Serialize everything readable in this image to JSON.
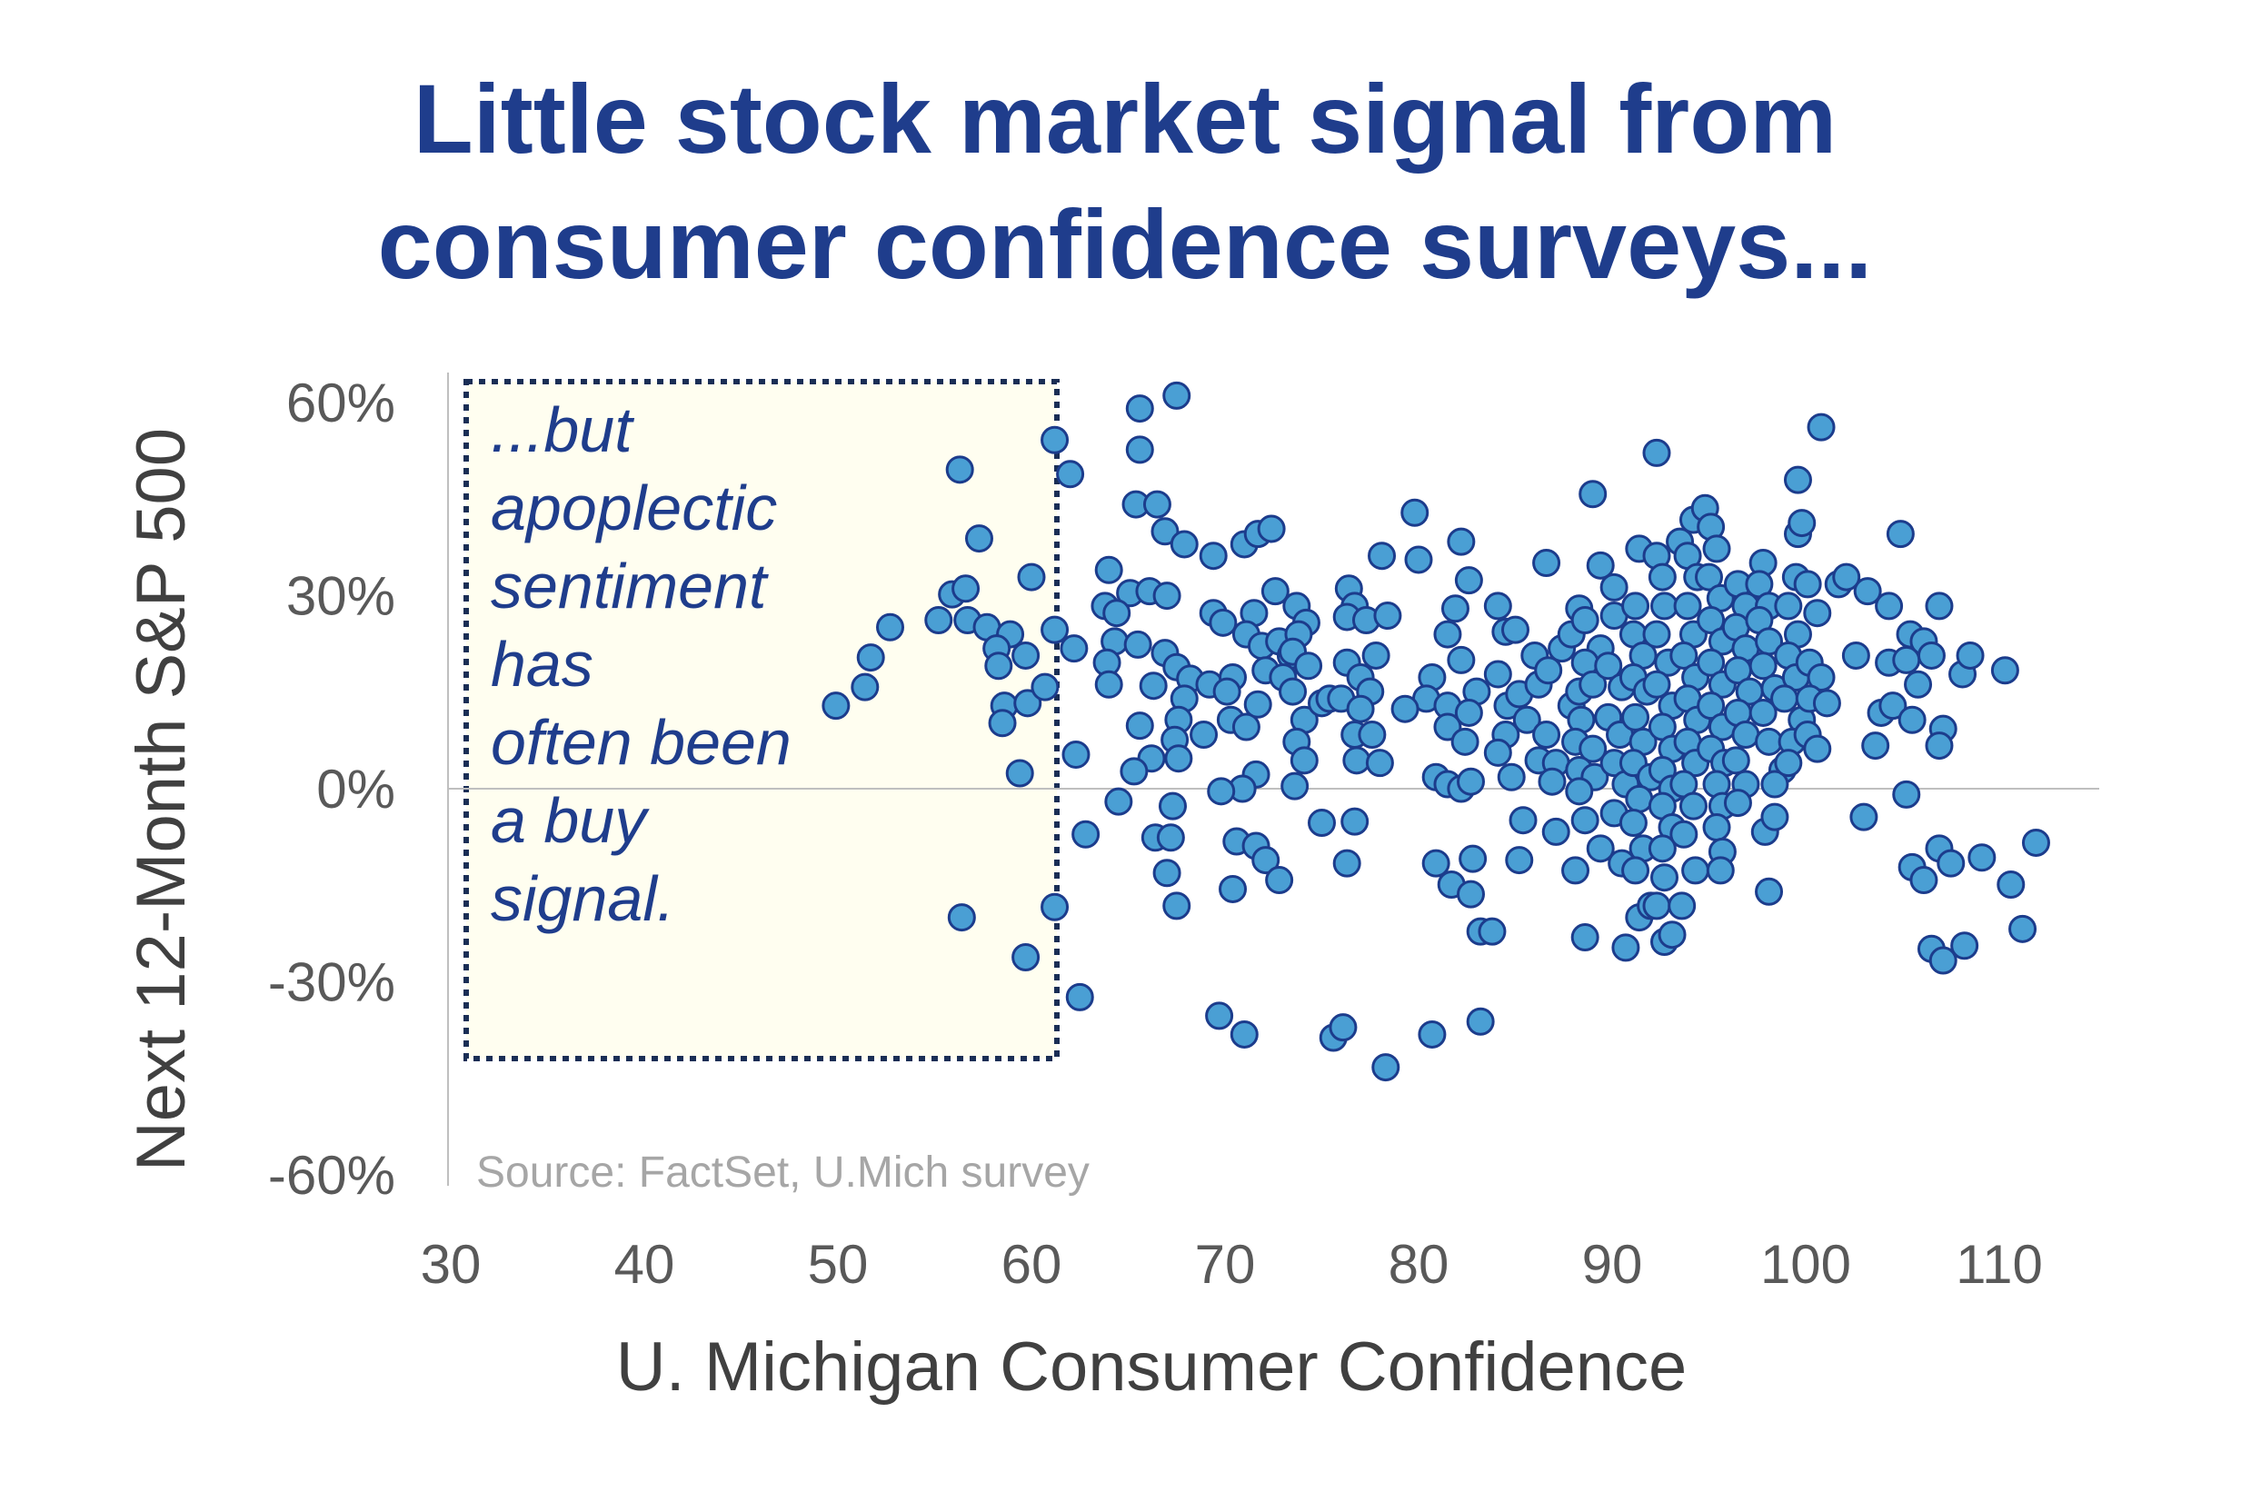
{
  "chart_data": {
    "type": "scatter",
    "title_lines": [
      "Little stock market signal from",
      "consumer confidence surveys..."
    ],
    "xlabel": "U. Michigan Consumer Confidence",
    "ylabel": "Next 12-Month S&P 500",
    "xlim": [
      30,
      115
    ],
    "ylim": [
      -60,
      60
    ],
    "xticks": [
      "30",
      "40",
      "50",
      "60",
      "70",
      "80",
      "90",
      "100",
      "110"
    ],
    "xtick_values": [
      30,
      40,
      50,
      60,
      70,
      80,
      90,
      100,
      110
    ],
    "yticks": [
      "60%",
      "30%",
      "0%",
      "-30%",
      "-60%"
    ],
    "ytick_values": [
      60,
      30,
      0,
      -30,
      -60
    ],
    "grid": false,
    "reference_line_y": 0,
    "highlight_region": {
      "x": [
        31,
        61
      ],
      "y": [
        -40,
        63
      ]
    },
    "annotation_lines": [
      "...but",
      "apoplectic",
      "sentiment",
      "has",
      "often been",
      "a buy",
      "signal."
    ],
    "source": "Source: FactSet, U.Mich survey",
    "colors": {
      "title": "#1f3d8c",
      "point_fill": "#4a9fd4",
      "point_stroke": "#1c3c8c",
      "box_fill": "#fffef0",
      "box_border": "#1a2e55"
    },
    "points": [
      [
        49.9,
        12.9
      ],
      [
        51.4,
        15.8
      ],
      [
        51.7,
        20.4
      ],
      [
        52.7,
        25.1
      ],
      [
        56.3,
        49.6
      ],
      [
        57.3,
        38.9
      ],
      [
        55.9,
        30.2
      ],
      [
        56.6,
        31.1
      ],
      [
        55.2,
        26.2
      ],
      [
        56.7,
        26.2
      ],
      [
        57.7,
        25.1
      ],
      [
        58.9,
        24.0
      ],
      [
        58.2,
        21.8
      ],
      [
        58.3,
        19.1
      ],
      [
        59.7,
        20.7
      ],
      [
        60.0,
        32.9
      ],
      [
        58.6,
        12.9
      ],
      [
        58.5,
        10.2
      ],
      [
        59.8,
        13.3
      ],
      [
        60.7,
        15.8
      ],
      [
        59.4,
        2.4
      ],
      [
        56.4,
        -20.0
      ],
      [
        59.7,
        -26.2
      ],
      [
        61.2,
        54.2
      ],
      [
        62.0,
        48.9
      ],
      [
        61.2,
        24.7
      ],
      [
        62.2,
        21.8
      ],
      [
        61.2,
        -18.4
      ],
      [
        62.3,
        5.3
      ],
      [
        62.5,
        -32.4
      ],
      [
        62.8,
        -7.1
      ],
      [
        65.6,
        59.1
      ],
      [
        67.5,
        61.1
      ],
      [
        65.6,
        52.7
      ],
      [
        65.4,
        44.2
      ],
      [
        66.5,
        44.2
      ],
      [
        66.9,
        40.0
      ],
      [
        67.9,
        38.0
      ],
      [
        69.4,
        36.2
      ],
      [
        64.0,
        34.0
      ],
      [
        63.8,
        28.4
      ],
      [
        65.1,
        30.4
      ],
      [
        66.1,
        30.7
      ],
      [
        67.0,
        30.0
      ],
      [
        64.4,
        27.3
      ],
      [
        64.3,
        22.9
      ],
      [
        65.5,
        22.4
      ],
      [
        66.9,
        21.1
      ],
      [
        63.9,
        19.6
      ],
      [
        64.0,
        16.2
      ],
      [
        66.3,
        16.0
      ],
      [
        67.5,
        18.9
      ],
      [
        68.2,
        17.1
      ],
      [
        67.9,
        14.0
      ],
      [
        69.2,
        16.2
      ],
      [
        65.6,
        9.8
      ],
      [
        67.6,
        10.7
      ],
      [
        67.4,
        7.6
      ],
      [
        68.9,
        8.4
      ],
      [
        67.6,
        4.7
      ],
      [
        66.2,
        4.7
      ],
      [
        65.3,
        2.7
      ],
      [
        64.5,
        -2.0
      ],
      [
        66.4,
        -7.6
      ],
      [
        67.3,
        -2.7
      ],
      [
        67.2,
        -7.6
      ],
      [
        67.0,
        -13.1
      ],
      [
        67.5,
        -18.2
      ],
      [
        69.4,
        27.3
      ],
      [
        69.9,
        25.8
      ],
      [
        71.0,
        38.0
      ],
      [
        71.7,
        39.6
      ],
      [
        72.4,
        40.4
      ],
      [
        72.6,
        30.7
      ],
      [
        71.5,
        27.3
      ],
      [
        71.1,
        24.0
      ],
      [
        71.9,
        22.2
      ],
      [
        72.8,
        22.9
      ],
      [
        72.1,
        18.4
      ],
      [
        73.4,
        20.7
      ],
      [
        73.0,
        17.3
      ],
      [
        70.4,
        17.3
      ],
      [
        70.1,
        15.1
      ],
      [
        70.3,
        10.7
      ],
      [
        71.1,
        9.6
      ],
      [
        71.7,
        13.1
      ],
      [
        71.6,
        2.2
      ],
      [
        70.9,
        0
      ],
      [
        69.8,
        -0.4
      ],
      [
        70.6,
        -8.2
      ],
      [
        71.6,
        -8.9
      ],
      [
        72.1,
        -11.1
      ],
      [
        72.8,
        -14.2
      ],
      [
        70.4,
        -15.6
      ],
      [
        69.7,
        -35.3
      ],
      [
        71.0,
        -38.2
      ],
      [
        73.7,
        28.4
      ],
      [
        74.2,
        25.8
      ],
      [
        73.8,
        24.0
      ],
      [
        73.5,
        21.3
      ],
      [
        74.3,
        19.1
      ],
      [
        73.5,
        15.1
      ],
      [
        74.1,
        10.7
      ],
      [
        73.7,
        7.3
      ],
      [
        74.1,
        4.4
      ],
      [
        73.6,
        0.4
      ],
      [
        75.0,
        13.3
      ],
      [
        75.4,
        14.0
      ],
      [
        75.0,
        -5.3
      ],
      [
        75.6,
        -38.7
      ],
      [
        76.1,
        -37.1
      ],
      [
        76.3,
        -11.6
      ],
      [
        76.7,
        -5.1
      ],
      [
        76.4,
        31.1
      ],
      [
        76.7,
        28.4
      ],
      [
        76.3,
        26.7
      ],
      [
        77.3,
        26.2
      ],
      [
        78.4,
        26.9
      ],
      [
        77.8,
        20.7
      ],
      [
        76.3,
        19.6
      ],
      [
        77.0,
        17.3
      ],
      [
        77.5,
        15.1
      ],
      [
        76.0,
        14.0
      ],
      [
        77.0,
        12.4
      ],
      [
        76.7,
        8.4
      ],
      [
        77.6,
        8.4
      ],
      [
        76.8,
        4.4
      ],
      [
        78.0,
        4.0
      ],
      [
        78.1,
        36.2
      ],
      [
        79.8,
        42.9
      ],
      [
        80.0,
        35.6
      ],
      [
        78.3,
        -43.3
      ],
      [
        80.7,
        -38.2
      ],
      [
        80.9,
        -11.6
      ],
      [
        81.7,
        -14.9
      ],
      [
        82.7,
        -16.4
      ],
      [
        83.2,
        -22.2
      ],
      [
        83.8,
        -22.2
      ],
      [
        83.2,
        -36.2
      ],
      [
        82.8,
        -10.9
      ],
      [
        82.2,
        38.4
      ],
      [
        82.6,
        32.4
      ],
      [
        81.9,
        28.0
      ],
      [
        81.5,
        24.0
      ],
      [
        82.2,
        20.0
      ],
      [
        80.7,
        17.3
      ],
      [
        80.4,
        14.0
      ],
      [
        79.3,
        12.4
      ],
      [
        81.5,
        12.9
      ],
      [
        83.0,
        15.1
      ],
      [
        82.6,
        11.8
      ],
      [
        81.5,
        9.6
      ],
      [
        82.4,
        7.3
      ],
      [
        80.9,
        1.8
      ],
      [
        81.5,
        0.7
      ],
      [
        82.2,
        0
      ],
      [
        82.7,
        1.1
      ],
      [
        84.1,
        28.4
      ],
      [
        84.5,
        24.4
      ],
      [
        85.0,
        24.7
      ],
      [
        84.1,
        17.8
      ],
      [
        84.6,
        12.9
      ],
      [
        85.2,
        14.7
      ],
      [
        84.5,
        8.4
      ],
      [
        84.1,
        5.6
      ],
      [
        84.8,
        1.8
      ],
      [
        85.4,
        -4.9
      ],
      [
        85.2,
        -11.1
      ],
      [
        86.6,
        35.1
      ],
      [
        86.0,
        20.7
      ],
      [
        86.2,
        16.2
      ],
      [
        86.7,
        18.4
      ],
      [
        85.6,
        10.7
      ],
      [
        86.6,
        8.4
      ],
      [
        86.2,
        4.4
      ],
      [
        87.1,
        4.0
      ],
      [
        86.9,
        1.1
      ],
      [
        87.1,
        -6.7
      ],
      [
        87.9,
        12.9
      ],
      [
        87.4,
        21.8
      ],
      [
        87.9,
        24.0
      ],
      [
        88.3,
        28.0
      ],
      [
        89.0,
        45.8
      ],
      [
        89.4,
        34.7
      ],
      [
        88.6,
        26.2
      ],
      [
        89.4,
        21.8
      ],
      [
        88.6,
        19.6
      ],
      [
        88.3,
        15.1
      ],
      [
        89.0,
        16.2
      ],
      [
        88.4,
        10.7
      ],
      [
        88.1,
        7.3
      ],
      [
        89.0,
        6.2
      ],
      [
        88.3,
        2.9
      ],
      [
        89.1,
        1.8
      ],
      [
        88.3,
        -0.4
      ],
      [
        88.6,
        -4.9
      ],
      [
        88.1,
        -12.7
      ],
      [
        88.6,
        -23.1
      ],
      [
        89.4,
        -9.3
      ],
      [
        90.1,
        31.3
      ],
      [
        90.1,
        26.9
      ],
      [
        89.8,
        19.1
      ],
      [
        90.5,
        15.8
      ],
      [
        89.8,
        11.1
      ],
      [
        90.4,
        8.4
      ],
      [
        90.1,
        4.0
      ],
      [
        90.7,
        0.7
      ],
      [
        90.1,
        -3.8
      ],
      [
        90.5,
        -11.6
      ],
      [
        90.7,
        -24.7
      ],
      [
        91.4,
        37.3
      ],
      [
        91.2,
        28.4
      ],
      [
        91.1,
        24.0
      ],
      [
        91.6,
        20.7
      ],
      [
        91.1,
        17.3
      ],
      [
        91.8,
        15.1
      ],
      [
        91.2,
        11.1
      ],
      [
        91.6,
        7.3
      ],
      [
        91.1,
        4.0
      ],
      [
        92.0,
        1.8
      ],
      [
        91.4,
        -1.6
      ],
      [
        91.1,
        -5.3
      ],
      [
        91.6,
        -9.3
      ],
      [
        91.2,
        -12.7
      ],
      [
        91.4,
        -20.0
      ],
      [
        92.0,
        -18.2
      ],
      [
        92.3,
        52.2
      ],
      [
        92.3,
        36.2
      ],
      [
        92.6,
        32.9
      ],
      [
        92.7,
        28.4
      ],
      [
        92.3,
        24.0
      ],
      [
        92.9,
        19.6
      ],
      [
        92.3,
        16.2
      ],
      [
        93.1,
        12.9
      ],
      [
        92.6,
        9.6
      ],
      [
        93.1,
        6.2
      ],
      [
        92.6,
        2.9
      ],
      [
        93.1,
        0
      ],
      [
        92.6,
        -2.7
      ],
      [
        93.1,
        -6.0
      ],
      [
        92.6,
        -9.3
      ],
      [
        92.7,
        -13.8
      ],
      [
        92.3,
        -18.2
      ],
      [
        92.7,
        -23.8
      ],
      [
        93.1,
        -22.7
      ],
      [
        93.6,
        -18.2
      ],
      [
        93.5,
        38.4
      ],
      [
        94.2,
        41.8
      ],
      [
        93.9,
        36.2
      ],
      [
        94.4,
        32.9
      ],
      [
        93.9,
        28.4
      ],
      [
        94.2,
        24.0
      ],
      [
        93.7,
        20.7
      ],
      [
        94.3,
        17.3
      ],
      [
        93.9,
        14.0
      ],
      [
        94.4,
        10.7
      ],
      [
        93.9,
        7.3
      ],
      [
        94.3,
        4.0
      ],
      [
        93.7,
        0.7
      ],
      [
        94.2,
        -2.7
      ],
      [
        93.7,
        -7.1
      ],
      [
        94.3,
        -12.7
      ],
      [
        94.8,
        43.6
      ],
      [
        95.1,
        40.7
      ],
      [
        95.4,
        37.3
      ],
      [
        95.0,
        32.9
      ],
      [
        95.6,
        29.6
      ],
      [
        95.1,
        26.2
      ],
      [
        95.7,
        22.9
      ],
      [
        95.1,
        19.6
      ],
      [
        95.7,
        16.2
      ],
      [
        95.1,
        12.9
      ],
      [
        95.7,
        9.6
      ],
      [
        95.1,
        6.2
      ],
      [
        95.8,
        4.0
      ],
      [
        95.4,
        0.7
      ],
      [
        95.7,
        -2.7
      ],
      [
        95.4,
        -6.0
      ],
      [
        95.7,
        -9.8
      ],
      [
        95.6,
        -12.7
      ],
      [
        96.5,
        31.8
      ],
      [
        96.9,
        28.4
      ],
      [
        96.4,
        25.1
      ],
      [
        96.9,
        21.8
      ],
      [
        96.5,
        18.4
      ],
      [
        97.1,
        15.1
      ],
      [
        96.5,
        11.8
      ],
      [
        96.9,
        8.4
      ],
      [
        96.4,
        4.4
      ],
      [
        96.9,
        0.7
      ],
      [
        96.5,
        -2.2
      ],
      [
        97.8,
        35.1
      ],
      [
        97.6,
        31.8
      ],
      [
        98.1,
        28.4
      ],
      [
        97.6,
        26.2
      ],
      [
        98.1,
        22.9
      ],
      [
        97.8,
        19.1
      ],
      [
        98.4,
        15.6
      ],
      [
        97.8,
        11.8
      ],
      [
        98.1,
        7.3
      ],
      [
        98.8,
        2.9
      ],
      [
        98.4,
        0.7
      ],
      [
        97.9,
        -6.7
      ],
      [
        98.4,
        -4.4
      ],
      [
        98.1,
        -16.0
      ],
      [
        99.5,
        32.9
      ],
      [
        99.1,
        28.4
      ],
      [
        99.6,
        24.0
      ],
      [
        99.1,
        20.7
      ],
      [
        99.5,
        17.3
      ],
      [
        98.9,
        14.0
      ],
      [
        99.8,
        10.7
      ],
      [
        99.3,
        7.3
      ],
      [
        99.1,
        4.0
      ],
      [
        99.6,
        39.6
      ],
      [
        99.8,
        41.3
      ],
      [
        99.6,
        48.0
      ],
      [
        100.8,
        56.2
      ],
      [
        100.1,
        31.8
      ],
      [
        100.6,
        27.3
      ],
      [
        100.2,
        19.6
      ],
      [
        100.8,
        17.3
      ],
      [
        100.2,
        14.0
      ],
      [
        101.1,
        13.3
      ],
      [
        100.1,
        8.4
      ],
      [
        100.6,
        6.2
      ],
      [
        101.7,
        31.8
      ],
      [
        102.1,
        32.9
      ],
      [
        103.2,
        30.7
      ],
      [
        102.6,
        20.7
      ],
      [
        103.0,
        -4.4
      ],
      [
        104.3,
        28.4
      ],
      [
        104.3,
        19.6
      ],
      [
        103.9,
        11.8
      ],
      [
        103.6,
        6.7
      ],
      [
        104.5,
        12.9
      ],
      [
        104.9,
        39.6
      ],
      [
        105.4,
        24.0
      ],
      [
        105.2,
        20.0
      ],
      [
        106.1,
        22.9
      ],
      [
        105.8,
        16.2
      ],
      [
        105.5,
        10.7
      ],
      [
        105.2,
        -0.9
      ],
      [
        105.5,
        -12.2
      ],
      [
        106.1,
        -14.2
      ],
      [
        106.5,
        20.7
      ],
      [
        106.9,
        28.4
      ],
      [
        107.1,
        9.3
      ],
      [
        106.9,
        6.7
      ],
      [
        106.9,
        -9.3
      ],
      [
        107.5,
        -11.6
      ],
      [
        106.5,
        -24.9
      ],
      [
        107.1,
        -26.7
      ],
      [
        108.2,
        -24.4
      ],
      [
        108.1,
        17.8
      ],
      [
        108.5,
        20.7
      ],
      [
        109.1,
        -10.7
      ],
      [
        110.3,
        18.4
      ],
      [
        110.6,
        -14.9
      ],
      [
        111.2,
        -21.8
      ],
      [
        111.9,
        -8.4
      ]
    ]
  }
}
